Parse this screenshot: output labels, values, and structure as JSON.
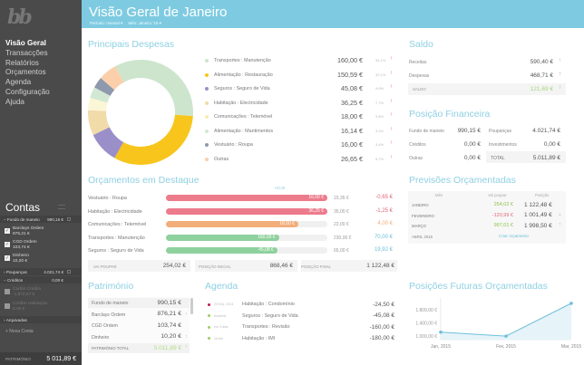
{
  "app": {
    "logo": "bb"
  },
  "sidebar": {
    "nav": [
      {
        "label": "Visão Geral",
        "active": true
      },
      {
        "label": "Transacções"
      },
      {
        "label": "Relatórios"
      },
      {
        "label": "Orçamentos"
      },
      {
        "label": "Agenda"
      },
      {
        "label": "Configuração"
      },
      {
        "label": "Ajuda"
      }
    ],
    "contas_title": "Contas",
    "groups": {
      "fundo": {
        "label": "Fundo de maneio",
        "value": "990,15 €"
      },
      "poupancas": {
        "label": "Poupanças",
        "value": "4.021,74 €"
      },
      "creditos": {
        "label": "Créditos",
        "value": "0,00 €"
      },
      "arquivadas": {
        "label": "Arquivadas"
      }
    },
    "accounts": [
      {
        "name": "Barclays Ordem",
        "value": "876,21 €",
        "checked": true
      },
      {
        "name": "CGD Ordem",
        "value": "103,74 €",
        "checked": true
      },
      {
        "name": "Dinheiro",
        "value": "10,20 €",
        "checked": true
      },
      {
        "name": "Cartão Crédito",
        "value": "-1.872,57 €",
        "checked": false
      },
      {
        "name": "Crédito Habitação",
        "value": "0,00 €",
        "checked": false
      }
    ],
    "nova_conta": "+ Nova Conta",
    "patrimonio_label": "PATRIMÓNIO",
    "patrimonio_value": "5 011,89 €"
  },
  "header": {
    "title": "Visão Geral de Janeiro",
    "periodo": "Período: mensal ▾",
    "mes": "Mês: Janeiro '15 ▾",
    "color": "#7ecbe1"
  },
  "despesas": {
    "title": "Principais Despesas",
    "items": [
      {
        "label": "Transportes : Manutenção",
        "value": "160,00 €",
        "pct": "34,1%",
        "amount": 160.0,
        "color": "#cde5cd"
      },
      {
        "label": "Alimentação : Restauração",
        "value": "150,59 €",
        "pct": "32,1%",
        "amount": 150.59,
        "color": "#f8c51c"
      },
      {
        "label": "Seguros : Seguro de Vida",
        "value": "45,08 €",
        "pct": "9,6%",
        "amount": 45.08,
        "color": "#9b8fc9"
      },
      {
        "label": "Habitação : Electricidade",
        "value": "36,25 €",
        "pct": "7,7%",
        "amount": 36.25,
        "color": "#f1dba8"
      },
      {
        "label": "Comunicações : Telemóvel",
        "value": "18,00 €",
        "pct": "3,8%",
        "amount": 18.0,
        "color": "#fbf6d6"
      },
      {
        "label": "Alimentação : Mantimentos",
        "value": "16,14 €",
        "pct": "3,4%",
        "amount": 16.14,
        "color": "#d3e8d3"
      },
      {
        "label": "Vestuário : Roupa",
        "value": "16,00 €",
        "pct": "3,4%",
        "amount": 16.0,
        "color": "#8e99ad"
      },
      {
        "label": "Outras",
        "value": "26,65 €",
        "pct": "5,7%",
        "amount": 26.65,
        "color": "#fbcfaa"
      }
    ]
  },
  "saldo": {
    "title": "Saldo",
    "receitas_label": "Receitas",
    "receitas": "590,40 €",
    "despesas_label": "Despesas",
    "despesas": "468,71 €",
    "saldo_label": "SALDO",
    "saldo": "121,69 €"
  },
  "posicao": {
    "title": "Posição Financeira",
    "rows": [
      {
        "l1": "Fundo de maneio",
        "v1": "990,15 €",
        "l2": "Poupanças",
        "v2": "4.021,74 €"
      },
      {
        "l1": "Créditos",
        "v1": "0,00 €",
        "l2": "Investimentos",
        "v2": "0,00 €"
      },
      {
        "l1": "Outras",
        "v1": "0,00 €",
        "l2": "TOTAL",
        "v2": "5.011,89 €"
      }
    ]
  },
  "orcamentos": {
    "title": "Orçamentos em Destaque",
    "hoje": "HOJE",
    "items": [
      {
        "label": "Vestuário : Roupa",
        "spent": "16,00 €",
        "budget": "15,35 €",
        "diff": "-0,65 €",
        "fill": 1.0,
        "color": "#ec7b8c",
        "diffcolor": "#e0667a"
      },
      {
        "label": "Habitação : Electricidade",
        "spent": "36,25 €",
        "budget": "35,00 €",
        "diff": "-1,25 €",
        "fill": 1.0,
        "color": "#ec7b8c",
        "diffcolor": "#e0667a"
      },
      {
        "label": "Comunicações : Telemóvel",
        "spent": "18,00 €",
        "budget": "22,00 €",
        "diff": "4,00 €",
        "fill": 0.82,
        "color": "#f2ae7a",
        "diffcolor": "#f2ae7a"
      },
      {
        "label": "Transportes : Manutenção",
        "spent": "160,00 €",
        "budget": "230,00 €",
        "diff": "70,00 €",
        "fill": 0.7,
        "color": "#8fd19e",
        "diffcolor": "#6cc0da"
      },
      {
        "label": "Seguros : Seguro de Vida",
        "spent": "45,08 €",
        "budget": "65,00 €",
        "diff": "19,92 €",
        "fill": 0.69,
        "color": "#8fd19e",
        "diffcolor": "#6cc0da"
      }
    ],
    "vai_poupar_label": "VAI POUPAR",
    "vai_poupar": "254,02 €",
    "pos_inicial_label": "POSIÇÃO INICIAL",
    "pos_inicial": "868,46 €",
    "pos_final_label": "POSIÇÃO FINAL",
    "pos_final": "1 122,48 €"
  },
  "previsoes": {
    "title": "Previsões Orçamentadas",
    "headers": [
      "Mês",
      "Vai poupar",
      "Posição"
    ],
    "rows": [
      {
        "mes": "JANEIRO",
        "poupar": "254,02 €",
        "posicao": "1 122,48 €",
        "pcolor": "#8bc34a",
        "arrow": ""
      },
      {
        "mes": "FEVEREIRO",
        "poupar": "-120,99 €",
        "posicao": "1 001,49 €",
        "pcolor": "#e0667a",
        "arrow": "down"
      },
      {
        "mes": "MARÇO",
        "poupar": "997,01 €",
        "posicao": "1 998,50 €",
        "pcolor": "#8bc34a",
        "arrow": "up"
      }
    ],
    "abril": "ABRIL 2015",
    "criar": "Criar orçamento"
  },
  "patrimonio": {
    "title": "Património",
    "rows": [
      {
        "label": "Fundo de maneio",
        "value": "990,15 €",
        "arrow": ""
      },
      {
        "label": "Barclays Ordem",
        "value": "876,21 €",
        "arrow": "up"
      },
      {
        "label": "CGD Ordem",
        "value": "103,74 €",
        "arrow": ""
      },
      {
        "label": "Dinheiro",
        "value": "10,20 €",
        "arrow": "up"
      }
    ],
    "total_label": "PATRIMÓNIO TOTAL",
    "total": "5.011,89 €"
  },
  "agenda": {
    "title": "Agenda",
    "items": [
      {
        "date": "29 Dez, 2014",
        "label": "Habitação : Condomínio",
        "value": "-24,50 €",
        "color": "#c2185b"
      },
      {
        "date": "Amanhã",
        "label": "Seguros : Seguro de Vida",
        "value": "-45,08 €",
        "color": "#9ccc65"
      },
      {
        "date": "em 3 dias",
        "label": "Transportes : Revisão",
        "value": "-160,00 €",
        "color": "#9ccc65"
      },
      {
        "date": "16 Abr",
        "label": "Habitação : IMI",
        "value": "-180,00 €",
        "color": "#9ccc65"
      }
    ]
  },
  "futuras": {
    "title": "Posições Futuras Orçamentadas"
  },
  "chart_data": {
    "type": "area",
    "title": "Posições Futuras Orçamentadas",
    "categories": [
      "Jan, 2015",
      "Fev, 2015",
      "Mar, 2015"
    ],
    "values": [
      1122.48,
      1001.49,
      1998.5
    ],
    "y_ticks": [
      "1.000,00 €",
      "1.400,00 €",
      "1.800,00 €"
    ],
    "ylim": [
      950,
      2050
    ],
    "color": "#6cc0da"
  }
}
